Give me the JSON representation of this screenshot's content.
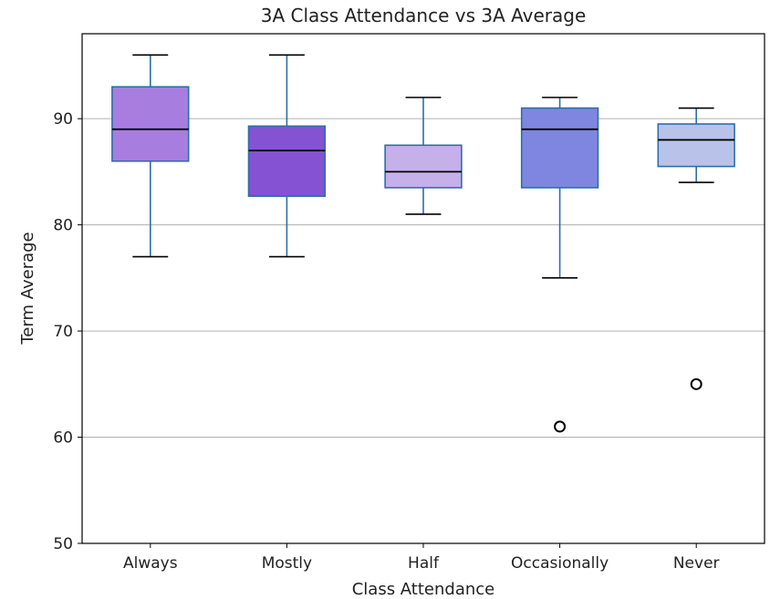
{
  "chart_data": {
    "type": "box",
    "title": "3A Class Attendance vs 3A Average",
    "xlabel": "Class Attendance",
    "ylabel": "Term Average",
    "ylim": [
      50,
      98
    ],
    "yticks": [
      50,
      60,
      70,
      80,
      90
    ],
    "grid": "horizontal",
    "categories": [
      "Always",
      "Mostly",
      "Half",
      "Occasionally",
      "Never"
    ],
    "boxes": [
      {
        "category": "Always",
        "whisker_low": 77,
        "q1": 86,
        "median": 89,
        "q3": 93,
        "whisker_high": 96,
        "outliers": [],
        "color": "#a87de0"
      },
      {
        "category": "Mostly",
        "whisker_low": 77,
        "q1": 82.7,
        "median": 87,
        "q3": 89.3,
        "whisker_high": 96,
        "outliers": [],
        "color": "#8552d3"
      },
      {
        "category": "Half",
        "whisker_low": 81,
        "q1": 83.5,
        "median": 85,
        "q3": 87.5,
        "whisker_high": 92,
        "outliers": [],
        "color": "#c5b0ea"
      },
      {
        "category": "Occasionally",
        "whisker_low": 75,
        "q1": 83.5,
        "median": 89,
        "q3": 91,
        "whisker_high": 92,
        "outliers": [
          61
        ],
        "color": "#7f86e0"
      },
      {
        "category": "Never",
        "whisker_low": 84,
        "q1": 85.5,
        "median": 88,
        "q3": 89.5,
        "whisker_high": 91,
        "outliers": [
          65
        ],
        "color": "#b9c3ea"
      }
    ],
    "colors": {
      "box_edge": "#2c6fa8",
      "whisker": "#2c6fa8",
      "cap": "#000000",
      "median": "#000000",
      "grid": "#b0b0b0",
      "outlier_edge": "#000000"
    }
  }
}
